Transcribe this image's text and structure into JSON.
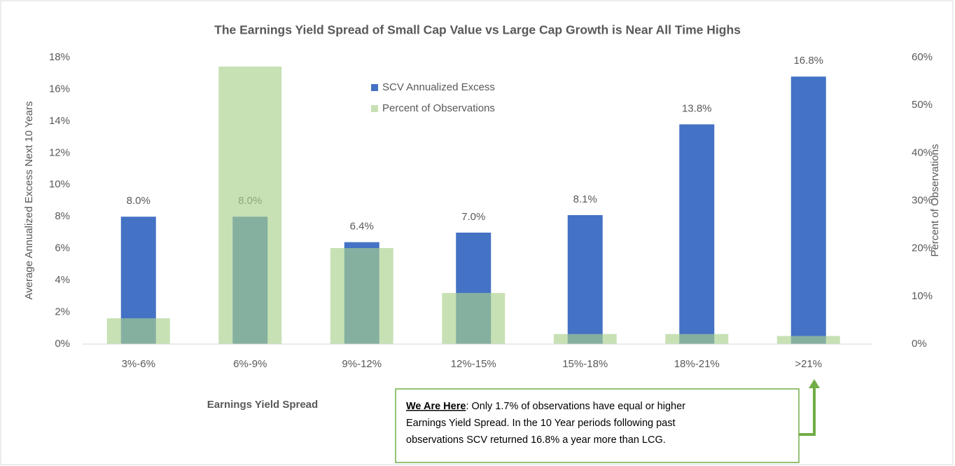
{
  "chart_data": {
    "type": "bar",
    "title": "The Earnings Yield Spread of Small Cap Value vs Large Cap Growth is Near All Time Highs",
    "xlabel": "Earnings Yield Spread",
    "ylabel": "Average Annualized Excess Next 10 Years",
    "y2label": "Percent of Observations",
    "categories": [
      "3%-6%",
      "6%-9%",
      "9%-12%",
      "12%-15%",
      "15%-18%",
      "18%-21%",
      ">21%"
    ],
    "series": [
      {
        "name": "SCV Annualized Excess",
        "color": "#4472c4",
        "values": [
          8.0,
          8.0,
          6.4,
          7.0,
          8.1,
          13.8,
          16.8
        ],
        "value_labels": [
          "8.0%",
          "8.0%",
          "6.4%",
          "7.0%",
          "8.1%",
          "13.8%",
          "16.8%"
        ]
      },
      {
        "name": "Percent of Observations",
        "color": "#a9d18e",
        "axis": "y2",
        "values": [
          5.4,
          58.1,
          20.1,
          10.7,
          2.1,
          2.1,
          1.7
        ]
      }
    ],
    "ylim": [
      0,
      18
    ],
    "yticks": [
      {
        "value": 0,
        "label": "0%"
      },
      {
        "value": 2,
        "label": "2%"
      },
      {
        "value": 4,
        "label": "4%"
      },
      {
        "value": 6,
        "label": "6%"
      },
      {
        "value": 8,
        "label": "8%"
      },
      {
        "value": 10,
        "label": "10%"
      },
      {
        "value": 12,
        "label": "12%"
      },
      {
        "value": 14,
        "label": "14%"
      },
      {
        "value": 16,
        "label": "16%"
      },
      {
        "value": 18,
        "label": "18%"
      }
    ],
    "y2lim": [
      0,
      60
    ],
    "y2ticks": [
      {
        "value": 0,
        "label": "0%"
      },
      {
        "value": 10,
        "label": "10%"
      },
      {
        "value": 20,
        "label": "20%"
      },
      {
        "value": 30,
        "label": "30%"
      },
      {
        "value": 40,
        "label": "40%"
      },
      {
        "value": 50,
        "label": "50%"
      },
      {
        "value": 60,
        "label": "60%"
      }
    ],
    "grid": false,
    "annotation": {
      "heading": "We Are Here",
      "lines": [
        ": Only 1.7% of observations have equal or higher",
        "Earnings Yield Spread.  In the 10 Year periods following past",
        "observations SCV returned 16.8% a year more than LCG."
      ]
    }
  }
}
